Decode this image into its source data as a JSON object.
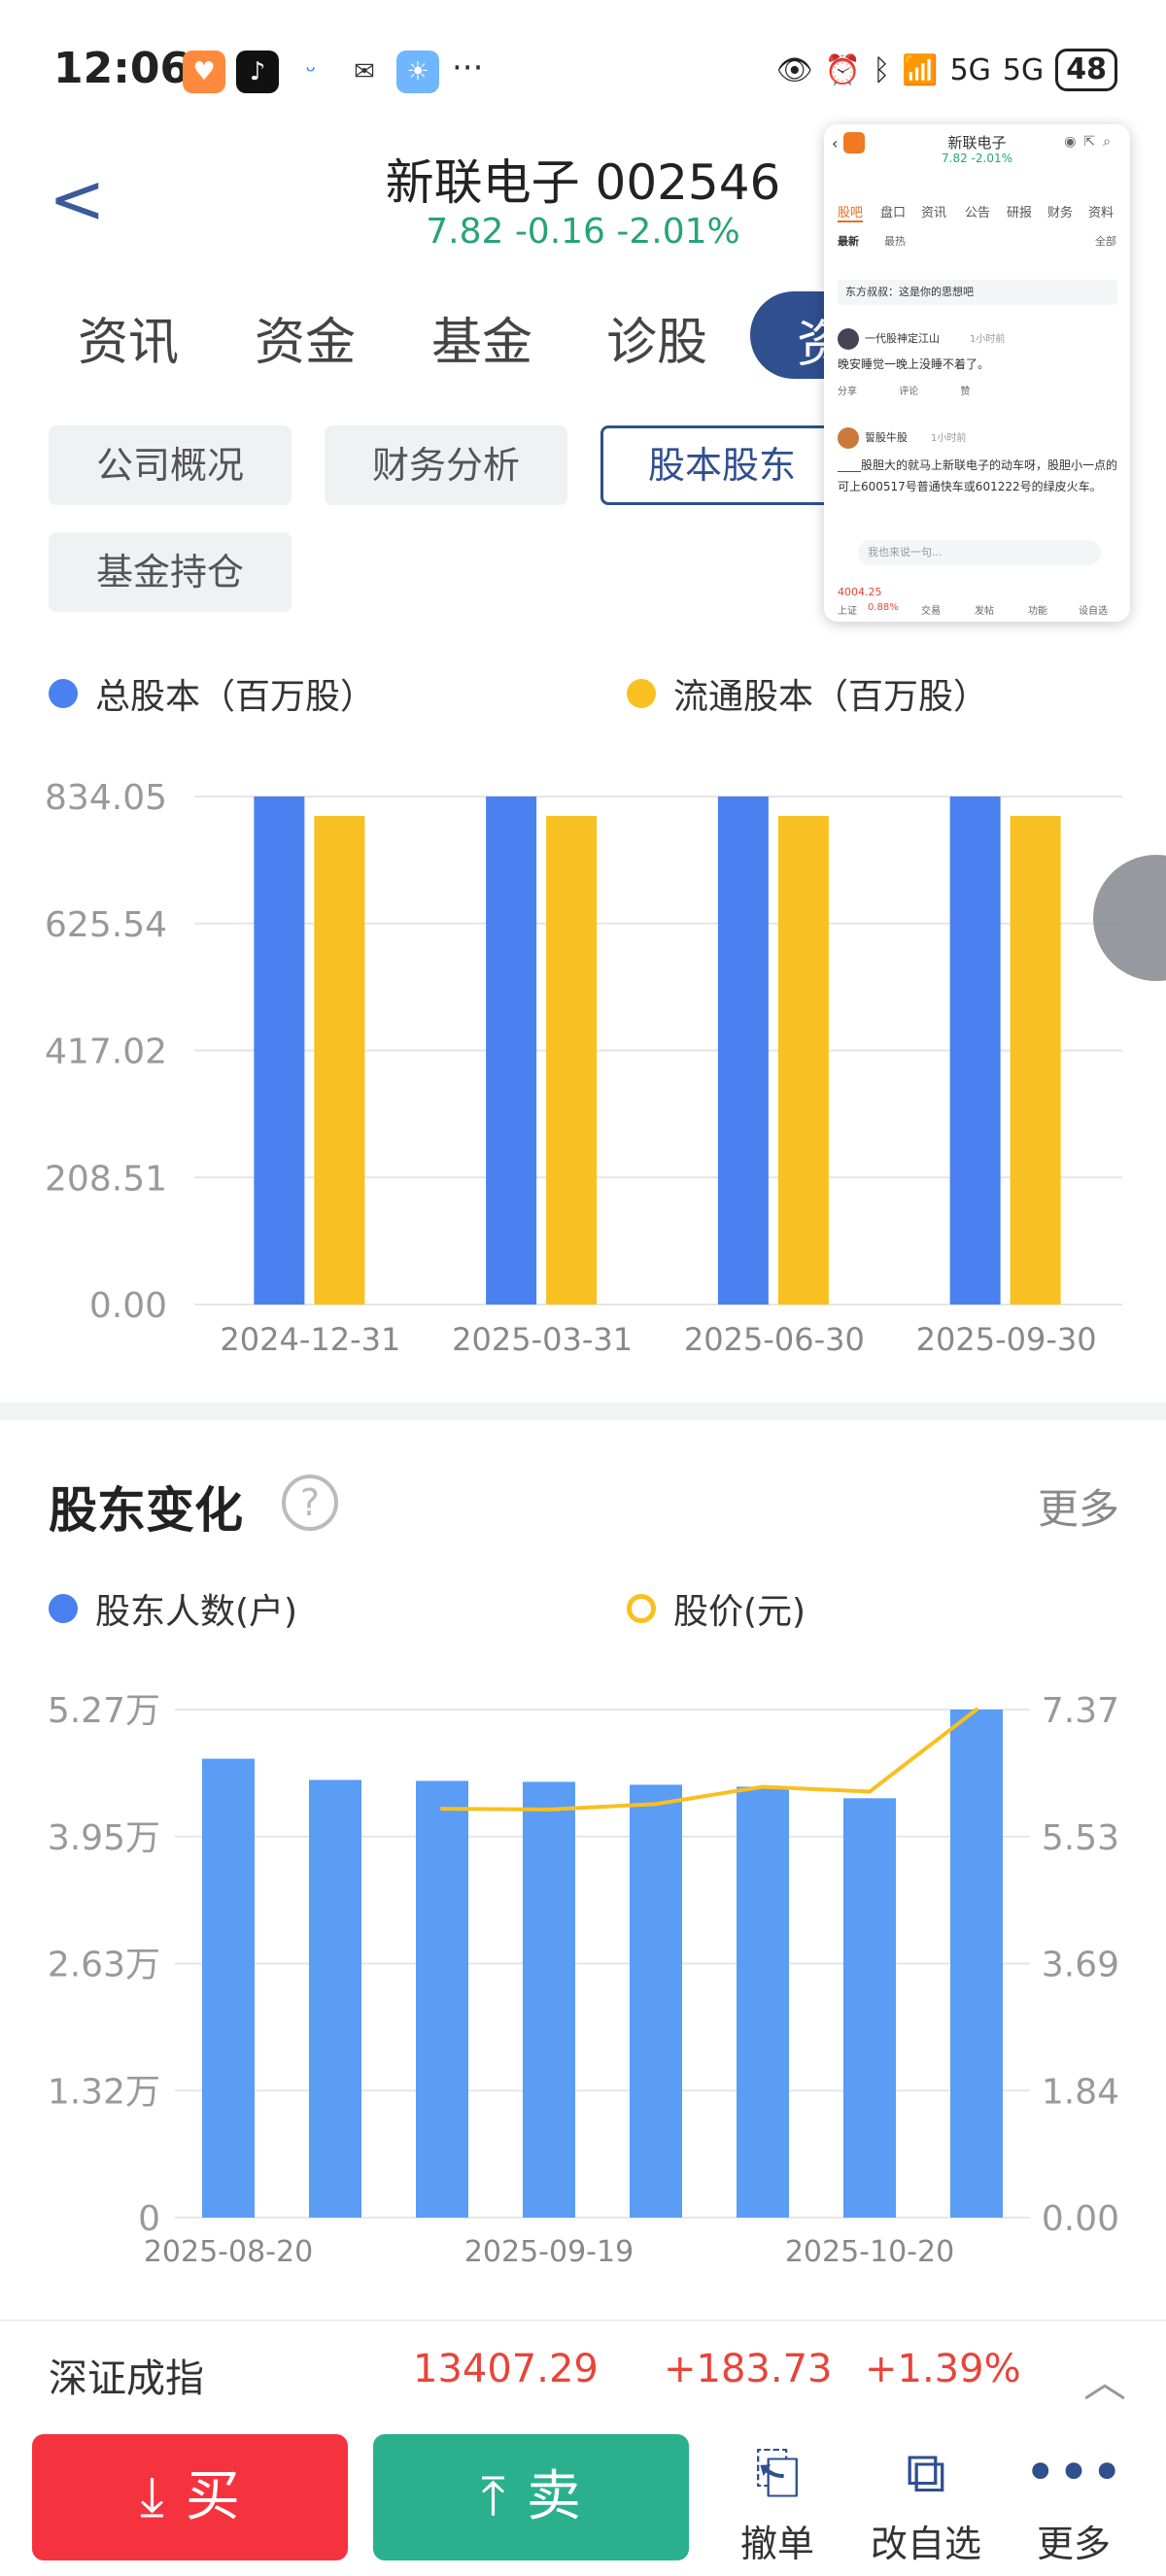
{
  "status_bar": {
    "time": "12:06",
    "battery": "48",
    "network": "5G"
  },
  "header": {
    "back_label": "<",
    "title": "新联电子 002546",
    "price_line": "7.82 -0.16 -2.01%"
  },
  "main_tabs": [
    "资讯",
    "资金",
    "基金",
    "诊股",
    "资"
  ],
  "sub_tabs": [
    "公司概况",
    "财务分析",
    "股本股东",
    "基金持仓"
  ],
  "chart1_legend": [
    "总股本（百万股）",
    "流通股本（百万股）"
  ],
  "chart1_yticks": [
    "834.05",
    "625.54",
    "417.02",
    "208.51",
    "0.00"
  ],
  "chart2_left_ticks": [
    "5.27万",
    "3.95万",
    "2.63万",
    "1.32万",
    "0"
  ],
  "chart2_right_ticks": [
    "7.37",
    "5.53",
    "3.69",
    "1.84",
    "0.00"
  ],
  "chart2_xticks": [
    "2025-08-20",
    "2025-09-19",
    "2025-10-20"
  ],
  "shareholder_section": {
    "title": "股东变化",
    "help": "?",
    "more": "更多",
    "legend": [
      "股东人数(户)",
      "股价(元)"
    ]
  },
  "index_bar": {
    "name": "深证成指",
    "value": "13407.29",
    "change": "+183.73",
    "pct": "+1.39%"
  },
  "bottom_actions": {
    "buy": "买",
    "sell": "卖",
    "cancel": "撤单",
    "edit_watch": "改自选",
    "more": "更多"
  },
  "pip_window": {
    "title": "新联电子",
    "price": "7.82 -2.01%",
    "tabs": [
      "股吧",
      "盘口",
      "资讯",
      "公告",
      "研报",
      "财务",
      "资料"
    ],
    "filters": [
      "最新",
      "最热",
      "全部"
    ],
    "notice": "东方叔叔：这是你的思想吧",
    "post1_user": "一代股神定江山",
    "post1_time": "1小时前",
    "post1_text": "晚安睡觉一晚上没睡不着了。",
    "post_actions": [
      "分享",
      "评论",
      "赞"
    ],
    "post2_user": "誓股牛股",
    "post2_time": "1小时前",
    "post2_text": "____股胆大的就马上新联电子的动车呀，股胆小一点的可上600517号普通快车或601222号的绿皮火车。",
    "input_placeholder": "我也来说一句...",
    "bottom_index": "4004.25",
    "bottom_index_pct": "0.88%",
    "bottom_index_name": "上证",
    "bottom_items": [
      "交易",
      "发帖",
      "功能",
      "设自选"
    ]
  },
  "colors": {
    "blue": "#4a80f0",
    "yellow": "#f8c020",
    "green": "#27a37a",
    "red": "#e8443a",
    "navy": "#2f4f8f"
  },
  "chart_data": [
    {
      "type": "bar",
      "categories": [
        "2024-12-31",
        "2025-03-31",
        "2025-06-30",
        "2025-09-30"
      ],
      "series": [
        {
          "name": "总股本（百万股）",
          "values": [
            834.05,
            834.05,
            834.05,
            834.05
          ]
        },
        {
          "name": "流通股本（百万股）",
          "values": [
            802,
            802,
            802,
            802
          ]
        }
      ],
      "ylim": [
        0,
        834.05
      ]
    },
    {
      "type": "bar",
      "categories": [
        "2025-08-20",
        "",
        "",
        "2025-09-19",
        "",
        "",
        "2025-10-20",
        ""
      ],
      "series": [
        {
          "name": "股东人数(户)",
          "values": [
            47600,
            45400,
            45300,
            45200,
            44900,
            44700,
            43500,
            52700
          ]
        },
        {
          "name": "股价(元)",
          "type": "line",
          "values": [
            null,
            null,
            5.93,
            5.92,
            6.0,
            6.25,
            6.18,
            7.37
          ]
        }
      ],
      "ylim_left": [
        0,
        52700
      ],
      "ylim_right": [
        0,
        7.37
      ]
    }
  ]
}
